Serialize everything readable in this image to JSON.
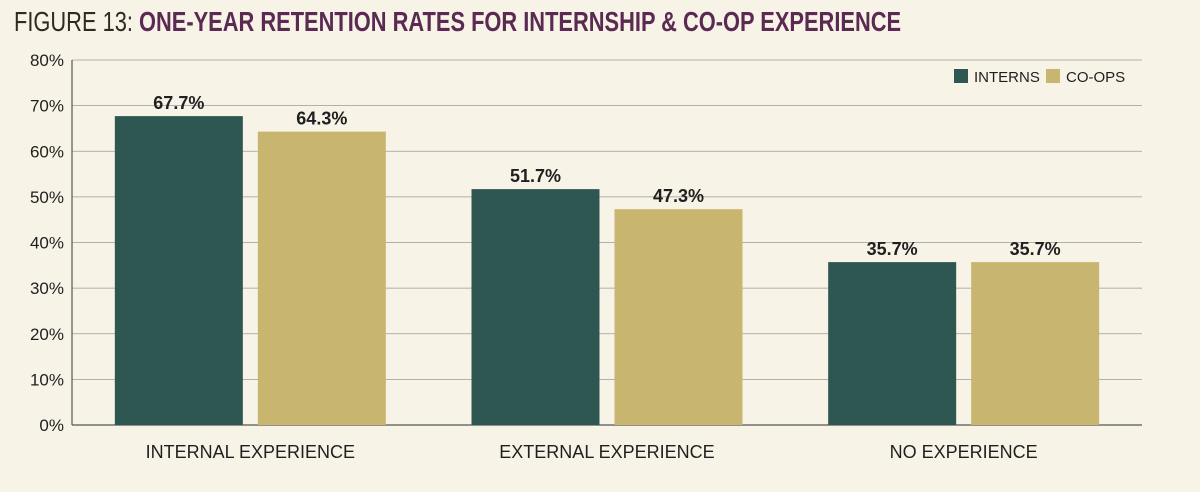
{
  "title_prefix": "FIGURE 13: ",
  "title_main": "ONE-YEAR RETENTION RATES FOR INTERNSHIP & CO-OP EXPERIENCE",
  "chart_data": {
    "type": "bar",
    "categories": [
      "INTERNAL EXPERIENCE",
      "EXTERNAL EXPERIENCE",
      "NO EXPERIENCE"
    ],
    "series": [
      {
        "name": "INTERNS",
        "values": [
          67.7,
          51.7,
          35.7
        ],
        "labels": [
          "67.7%",
          "51.7%",
          "35.7%"
        ],
        "color": "#2f5752"
      },
      {
        "name": "CO-OPS",
        "values": [
          64.3,
          47.3,
          35.7
        ],
        "labels": [
          "64.3%",
          "47.3%",
          "35.7%"
        ],
        "color": "#c8b670"
      }
    ],
    "yticks": [
      "0%",
      "10%",
      "20%",
      "30%",
      "40%",
      "50%",
      "60%",
      "70%",
      "80%"
    ],
    "ylim": [
      0,
      80
    ],
    "grid": true,
    "legend": "top-right"
  }
}
